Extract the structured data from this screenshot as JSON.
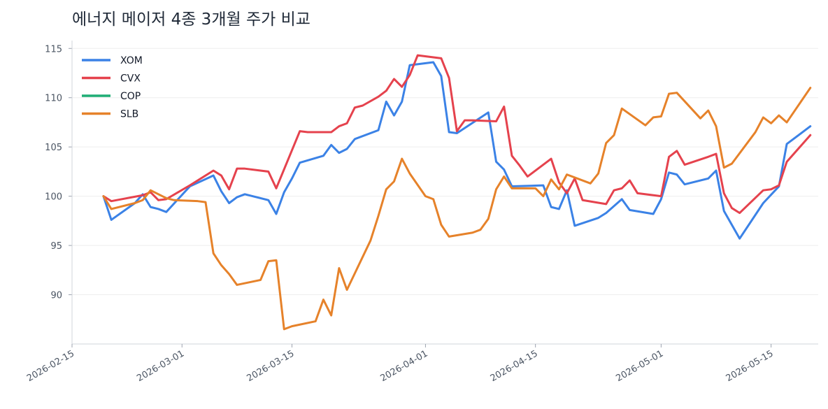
{
  "chart_data": {
    "type": "line",
    "title": "에너지 메이저 4종 3개월 주가 비교",
    "xlabel": "",
    "ylabel": "",
    "x_ticks": [
      "2026-02-15",
      "2026-03-01",
      "2026-03-15",
      "2026-04-01",
      "2026-04-15",
      "2026-05-01",
      "2026-05-15"
    ],
    "y_ticks": [
      90,
      95,
      100,
      105,
      110,
      115
    ],
    "xlim": [
      "2026-02-15",
      "2026-05-21"
    ],
    "ylim": [
      85,
      115.8
    ],
    "grid": "horizontal",
    "legend_position": "top-left",
    "series": [
      {
        "name": "XOM",
        "color": "#3b82e6",
        "points": [
          [
            "2026-02-19",
            100.0
          ],
          [
            "2026-02-20",
            97.6
          ],
          [
            "2026-02-23",
            99.3
          ],
          [
            "2026-02-24",
            100.2
          ],
          [
            "2026-02-25",
            98.9
          ],
          [
            "2026-02-26",
            98.7
          ],
          [
            "2026-02-27",
            98.4
          ],
          [
            "2026-03-02",
            101.0
          ],
          [
            "2026-03-05",
            102.1
          ],
          [
            "2026-03-06",
            100.5
          ],
          [
            "2026-03-07",
            99.3
          ],
          [
            "2026-03-08",
            99.9
          ],
          [
            "2026-03-09",
            100.2
          ],
          [
            "2026-03-12",
            99.6
          ],
          [
            "2026-03-13",
            98.2
          ],
          [
            "2026-03-14",
            100.4
          ],
          [
            "2026-03-15",
            101.8
          ],
          [
            "2026-03-16",
            103.4
          ],
          [
            "2026-03-19",
            104.1
          ],
          [
            "2026-03-20",
            105.2
          ],
          [
            "2026-03-21",
            104.4
          ],
          [
            "2026-03-22",
            104.8
          ],
          [
            "2026-03-23",
            105.8
          ],
          [
            "2026-03-26",
            106.7
          ],
          [
            "2026-03-27",
            109.6
          ],
          [
            "2026-03-28",
            108.2
          ],
          [
            "2026-03-29",
            109.6
          ],
          [
            "2026-03-30",
            113.3
          ],
          [
            "2026-04-02",
            113.6
          ],
          [
            "2026-04-03",
            112.2
          ],
          [
            "2026-04-04",
            106.5
          ],
          [
            "2026-04-05",
            106.4
          ],
          [
            "2026-04-09",
            108.5
          ],
          [
            "2026-04-10",
            103.5
          ],
          [
            "2026-04-11",
            102.7
          ],
          [
            "2026-04-12",
            101.0
          ],
          [
            "2026-04-16",
            101.1
          ],
          [
            "2026-04-17",
            98.9
          ],
          [
            "2026-04-18",
            98.7
          ],
          [
            "2026-04-19",
            100.6
          ],
          [
            "2026-04-20",
            97.0
          ],
          [
            "2026-04-23",
            97.8
          ],
          [
            "2026-04-24",
            98.3
          ],
          [
            "2026-04-26",
            99.7
          ],
          [
            "2026-04-27",
            98.6
          ],
          [
            "2026-04-30",
            98.2
          ],
          [
            "2026-05-01",
            99.7
          ],
          [
            "2026-05-02",
            102.4
          ],
          [
            "2026-05-03",
            102.2
          ],
          [
            "2026-05-04",
            101.2
          ],
          [
            "2026-05-07",
            101.8
          ],
          [
            "2026-05-08",
            102.6
          ],
          [
            "2026-05-09",
            98.5
          ],
          [
            "2026-05-11",
            95.7
          ],
          [
            "2026-05-14",
            99.3
          ],
          [
            "2026-05-16",
            101.0
          ],
          [
            "2026-05-17",
            105.3
          ],
          [
            "2026-05-20",
            107.1
          ]
        ]
      },
      {
        "name": "CVX",
        "color": "#e5424d",
        "points": [
          [
            "2026-02-19",
            100.0
          ],
          [
            "2026-02-20",
            99.5
          ],
          [
            "2026-02-24",
            100.1
          ],
          [
            "2026-02-25",
            100.4
          ],
          [
            "2026-02-26",
            99.6
          ],
          [
            "2026-02-27",
            99.7
          ],
          [
            "2026-03-02",
            101.1
          ],
          [
            "2026-03-05",
            102.6
          ],
          [
            "2026-03-06",
            102.1
          ],
          [
            "2026-03-07",
            100.7
          ],
          [
            "2026-03-08",
            102.8
          ],
          [
            "2026-03-09",
            102.8
          ],
          [
            "2026-03-12",
            102.5
          ],
          [
            "2026-03-13",
            100.8
          ],
          [
            "2026-03-16",
            106.6
          ],
          [
            "2026-03-17",
            106.5
          ],
          [
            "2026-03-20",
            106.5
          ],
          [
            "2026-03-21",
            107.1
          ],
          [
            "2026-03-22",
            107.4
          ],
          [
            "2026-03-23",
            109.0
          ],
          [
            "2026-03-24",
            109.2
          ],
          [
            "2026-03-26",
            110.1
          ],
          [
            "2026-03-27",
            110.7
          ],
          [
            "2026-03-28",
            111.9
          ],
          [
            "2026-03-29",
            111.1
          ],
          [
            "2026-03-30",
            112.3
          ],
          [
            "2026-03-31",
            114.3
          ],
          [
            "2026-04-03",
            114.0
          ],
          [
            "2026-04-04",
            112.0
          ],
          [
            "2026-04-05",
            106.6
          ],
          [
            "2026-04-06",
            107.7
          ],
          [
            "2026-04-07",
            107.7
          ],
          [
            "2026-04-10",
            107.6
          ],
          [
            "2026-04-11",
            109.1
          ],
          [
            "2026-04-12",
            104.1
          ],
          [
            "2026-04-13",
            103.1
          ],
          [
            "2026-04-14",
            102.0
          ],
          [
            "2026-04-17",
            103.8
          ],
          [
            "2026-04-18",
            101.4
          ],
          [
            "2026-04-19",
            100.3
          ],
          [
            "2026-04-20",
            101.8
          ],
          [
            "2026-04-21",
            99.6
          ],
          [
            "2026-04-24",
            99.2
          ],
          [
            "2026-04-25",
            100.6
          ],
          [
            "2026-04-26",
            100.8
          ],
          [
            "2026-04-27",
            101.6
          ],
          [
            "2026-04-28",
            100.3
          ],
          [
            "2026-05-01",
            100.0
          ],
          [
            "2026-05-02",
            104.0
          ],
          [
            "2026-05-03",
            104.6
          ],
          [
            "2026-05-04",
            103.2
          ],
          [
            "2026-05-07",
            104.0
          ],
          [
            "2026-05-08",
            104.3
          ],
          [
            "2026-05-09",
            100.3
          ],
          [
            "2026-05-10",
            98.8
          ],
          [
            "2026-05-11",
            98.3
          ],
          [
            "2026-05-14",
            100.6
          ],
          [
            "2026-05-15",
            100.7
          ],
          [
            "2026-05-16",
            101.1
          ],
          [
            "2026-05-17",
            103.5
          ],
          [
            "2026-05-20",
            106.2
          ]
        ]
      },
      {
        "name": "COP",
        "color": "#1fad75",
        "points": []
      },
      {
        "name": "SLB",
        "color": "#e6822a",
        "points": [
          [
            "2026-02-19",
            100.0
          ],
          [
            "2026-02-20",
            98.7
          ],
          [
            "2026-02-23",
            99.3
          ],
          [
            "2026-02-24",
            99.6
          ],
          [
            "2026-02-25",
            100.6
          ],
          [
            "2026-02-26",
            100.2
          ],
          [
            "2026-02-27",
            99.8
          ],
          [
            "2026-02-28",
            99.6
          ],
          [
            "2026-03-03",
            99.5
          ],
          [
            "2026-03-04",
            99.4
          ],
          [
            "2026-03-05",
            94.2
          ],
          [
            "2026-03-06",
            93.0
          ],
          [
            "2026-03-07",
            92.1
          ],
          [
            "2026-03-08",
            91.0
          ],
          [
            "2026-03-11",
            91.5
          ],
          [
            "2026-03-12",
            93.4
          ],
          [
            "2026-03-13",
            93.5
          ],
          [
            "2026-03-14",
            86.5
          ],
          [
            "2026-03-15",
            86.8
          ],
          [
            "2026-03-18",
            87.3
          ],
          [
            "2026-03-19",
            89.5
          ],
          [
            "2026-03-20",
            87.9
          ],
          [
            "2026-03-21",
            92.7
          ],
          [
            "2026-03-22",
            90.5
          ],
          [
            "2026-03-25",
            95.5
          ],
          [
            "2026-03-26",
            98.0
          ],
          [
            "2026-03-27",
            100.7
          ],
          [
            "2026-03-28",
            101.5
          ],
          [
            "2026-03-29",
            103.8
          ],
          [
            "2026-03-30",
            102.3
          ],
          [
            "2026-04-01",
            100.0
          ],
          [
            "2026-04-02",
            99.7
          ],
          [
            "2026-04-03",
            97.1
          ],
          [
            "2026-04-04",
            95.9
          ],
          [
            "2026-04-07",
            96.3
          ],
          [
            "2026-04-08",
            96.6
          ],
          [
            "2026-04-09",
            97.7
          ],
          [
            "2026-04-10",
            100.7
          ],
          [
            "2026-04-11",
            102.0
          ],
          [
            "2026-04-12",
            100.8
          ],
          [
            "2026-04-15",
            100.8
          ],
          [
            "2026-04-16",
            100.0
          ],
          [
            "2026-04-17",
            101.7
          ],
          [
            "2026-04-18",
            100.7
          ],
          [
            "2026-04-19",
            102.2
          ],
          [
            "2026-04-22",
            101.3
          ],
          [
            "2026-04-23",
            102.3
          ],
          [
            "2026-04-24",
            105.4
          ],
          [
            "2026-04-25",
            106.2
          ],
          [
            "2026-04-26",
            108.9
          ],
          [
            "2026-04-29",
            107.2
          ],
          [
            "2026-04-30",
            108.0
          ],
          [
            "2026-05-01",
            108.1
          ],
          [
            "2026-05-02",
            110.4
          ],
          [
            "2026-05-03",
            110.5
          ],
          [
            "2026-05-06",
            107.9
          ],
          [
            "2026-05-07",
            108.7
          ],
          [
            "2026-05-08",
            107.1
          ],
          [
            "2026-05-09",
            102.9
          ],
          [
            "2026-05-10",
            103.3
          ],
          [
            "2026-05-13",
            106.5
          ],
          [
            "2026-05-14",
            108.0
          ],
          [
            "2026-05-15",
            107.4
          ],
          [
            "2026-05-16",
            108.2
          ],
          [
            "2026-05-17",
            107.5
          ],
          [
            "2026-05-20",
            111.0
          ]
        ]
      }
    ]
  }
}
